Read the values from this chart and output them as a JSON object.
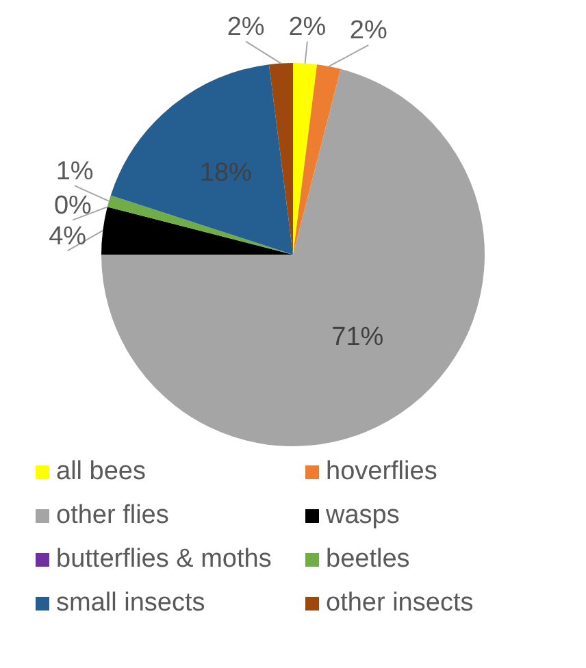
{
  "chart_data": {
    "type": "pie",
    "categories": [
      "all bees",
      "hoverflies",
      "other flies",
      "wasps",
      "butterflies & moths",
      "beetles",
      "small insects",
      "other insects"
    ],
    "values": [
      2,
      2,
      71,
      4,
      0,
      1,
      18,
      2
    ],
    "colors": [
      "#ffff00",
      "#ed7d31",
      "#a5a5a5",
      "#000000",
      "#7030a0",
      "#70ad47",
      "#255e91",
      "#9e480e"
    ],
    "value_labels": [
      "2%",
      "2%",
      "71%",
      "4%",
      "0%",
      "1%",
      "18%",
      "2%"
    ],
    "legend": "bottom"
  }
}
